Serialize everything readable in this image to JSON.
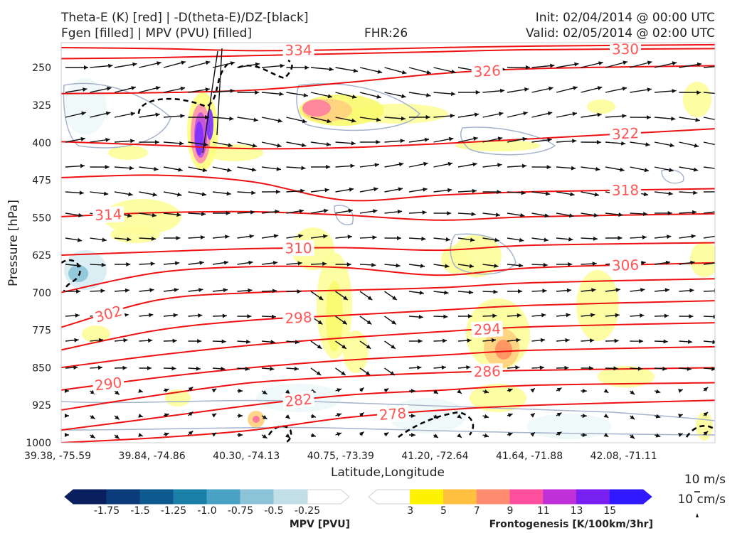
{
  "header": {
    "title_line1": "Theta-E (K) [red] | -D(theta-E)/DZ-[black]",
    "title_line2": "Fgen [filled] | MPV (PVU) [filled]",
    "fhr": "FHR:26",
    "init": "Init: 02/04/2014 @ 00:00 UTC",
    "valid": "Valid: 02/05/2014 @ 02:00 UTC"
  },
  "chart_data": {
    "type": "cross-section",
    "xlabel": "Latitude,Longitude",
    "ylabel": "Pressure [hPa]",
    "x_ticks": [
      "39.38, -75.59",
      "39.84, -74.86",
      "40.30, -74.13",
      "40.75, -73.39",
      "41.20, -72.64",
      "41.64, -71.88",
      "42.08, -71.11"
    ],
    "y_ticks": [
      250,
      325,
      400,
      475,
      550,
      625,
      700,
      775,
      850,
      925,
      1000
    ],
    "ylim": [
      1000,
      200
    ],
    "theta_e_contours": [
      {
        "label": "334",
        "y": [
          210,
          212,
          216,
          214,
          210,
          207,
          204
        ]
      },
      {
        "label": "330",
        "y": [
          232,
          230,
          226,
          222,
          218,
          214,
          212
        ]
      },
      {
        "label": "326",
        "y": [
          302,
          300,
          295,
          280,
          262,
          252,
          246
        ]
      },
      {
        "label": "322",
        "y": [
          398,
          405,
          412,
          410,
          402,
          392,
          372
        ]
      },
      {
        "label": "318",
        "y": [
          470,
          465,
          478,
          515,
          505,
          498,
          492
        ]
      },
      {
        "label": "314",
        "y": [
          548,
          540,
          538,
          545,
          555,
          548,
          542
        ]
      },
      {
        "label": "310",
        "y": [
          625,
          618,
          612,
          610,
          615,
          605,
          600
        ]
      },
      {
        "label": "306",
        "y": [
          700,
          660,
          648,
          650,
          665,
          650,
          640
        ]
      },
      {
        "label": "302",
        "y": [
          770,
          715,
          700,
          695,
          690,
          680,
          672
        ]
      },
      {
        "label": "298",
        "y": [
          815,
          775,
          755,
          745,
          735,
          725,
          716
        ]
      },
      {
        "label": "294",
        "y": [
          850,
          825,
          805,
          790,
          778,
          768,
          760
        ]
      },
      {
        "label": "290",
        "y": [
          895,
          870,
          850,
          835,
          825,
          815,
          808
        ]
      },
      {
        "label": "286",
        "y": [
          935,
          905,
          880,
          868,
          860,
          855,
          850
        ]
      },
      {
        "label": "282",
        "y": [
          975,
          950,
          925,
          905,
          895,
          885,
          880
        ]
      },
      {
        "label": "278",
        "y": [
          1000,
          990,
          975,
          950,
          935,
          925,
          915
        ]
      }
    ],
    "mpv_colorbar": {
      "title": "MPV [PVU]",
      "ticks": [
        "-1.75",
        "-1.5",
        "-1.25",
        "-1.0",
        "-0.75",
        "-0.5",
        "-0.25"
      ],
      "colors": [
        "#0a1f5e",
        "#0b3b7a",
        "#0e5a90",
        "#1a80a8",
        "#4aa3c4",
        "#8cc3d8",
        "#c2dfe8",
        "#ffffff"
      ]
    },
    "fgen_colorbar": {
      "title": "Frontogenesis [K/100km/3hr]",
      "ticks": [
        "3",
        "5",
        "7",
        "9",
        "11",
        "13",
        "15"
      ],
      "colors": [
        "#ffffff",
        "#fff200",
        "#ffc040",
        "#ff8c70",
        "#ff50a0",
        "#c030d8",
        "#7820f0",
        "#3018ff"
      ]
    },
    "wind_key": {
      "horizontal": "10 m/s",
      "vertical": "10 cm/s"
    }
  }
}
